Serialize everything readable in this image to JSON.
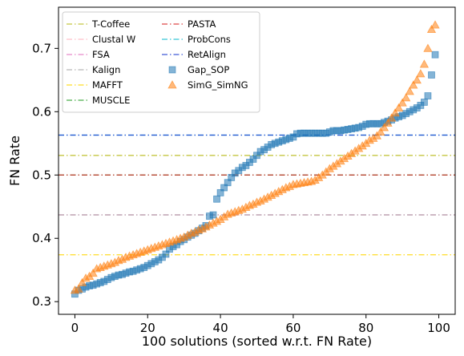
{
  "chart_data": {
    "type": "scatter",
    "xlabel": "100 solutions (sorted w.r.t. FN Rate)",
    "ylabel": "FN Rate",
    "xlim": [
      -4.5,
      104.5
    ],
    "ylim": [
      0.28,
      0.765
    ],
    "xticks": [
      0,
      20,
      40,
      60,
      80,
      100
    ],
    "yticks": [
      0.3,
      0.4,
      0.5,
      0.6,
      0.7
    ],
    "grid": false,
    "legend_position": "top-left",
    "reference_lines": [
      {
        "name": "T-Coffee",
        "value": 0.531,
        "color": "#bcbd22"
      },
      {
        "name": "Clustal W",
        "value": 0.437,
        "color": "#ffb6c1"
      },
      {
        "name": "FSA",
        "value": 0.437,
        "color": "#e377c2"
      },
      {
        "name": "Kalign",
        "value": 0.437,
        "color": "#aaaaaa"
      },
      {
        "name": "MAFFT",
        "value": 0.374,
        "color": "#ffd700"
      },
      {
        "name": "MUSCLE",
        "value": 0.5,
        "color": "#2ca02c"
      },
      {
        "name": "PASTA",
        "value": 0.5,
        "color": "#d62728"
      },
      {
        "name": "ProbCons",
        "value": 0.563,
        "color": "#17becf"
      },
      {
        "name": "RetAlign",
        "value": 0.563,
        "color": "#1f3fd1"
      }
    ],
    "series": [
      {
        "name": "Gap_SOP",
        "marker": "square",
        "color": "#1f77b4",
        "values": [
          0.312,
          0.318,
          0.32,
          0.323,
          0.325,
          0.326,
          0.328,
          0.33,
          0.332,
          0.335,
          0.338,
          0.34,
          0.342,
          0.343,
          0.345,
          0.347,
          0.348,
          0.35,
          0.352,
          0.354,
          0.357,
          0.36,
          0.363,
          0.366,
          0.37,
          0.375,
          0.383,
          0.387,
          0.39,
          0.395,
          0.398,
          0.402,
          0.405,
          0.408,
          0.412,
          0.416,
          0.42,
          0.435,
          0.437,
          0.462,
          0.472,
          0.48,
          0.488,
          0.496,
          0.503,
          0.507,
          0.512,
          0.515,
          0.52,
          0.525,
          0.531,
          0.537,
          0.54,
          0.544,
          0.548,
          0.55,
          0.552,
          0.554,
          0.556,
          0.558,
          0.56,
          0.565,
          0.566,
          0.566,
          0.566,
          0.566,
          0.566,
          0.566,
          0.566,
          0.566,
          0.568,
          0.57,
          0.57,
          0.57,
          0.571,
          0.572,
          0.573,
          0.574,
          0.575,
          0.577,
          0.58,
          0.581,
          0.581,
          0.581,
          0.581,
          0.583,
          0.585,
          0.587,
          0.59,
          0.592,
          0.594,
          0.597,
          0.6,
          0.603,
          0.606,
          0.61,
          0.615,
          0.625,
          0.658,
          0.69
        ]
      },
      {
        "name": "SimG_SimNG",
        "marker": "triangle",
        "color": "#ff7f0e",
        "values": [
          0.318,
          0.32,
          0.33,
          0.337,
          0.34,
          0.345,
          0.352,
          0.354,
          0.356,
          0.358,
          0.36,
          0.362,
          0.365,
          0.367,
          0.37,
          0.372,
          0.374,
          0.376,
          0.378,
          0.38,
          0.382,
          0.384,
          0.386,
          0.388,
          0.39,
          0.392,
          0.394,
          0.396,
          0.398,
          0.4,
          0.402,
          0.405,
          0.408,
          0.41,
          0.413,
          0.415,
          0.418,
          0.421,
          0.424,
          0.427,
          0.43,
          0.434,
          0.438,
          0.44,
          0.442,
          0.444,
          0.446,
          0.449,
          0.452,
          0.454,
          0.457,
          0.459,
          0.462,
          0.465,
          0.468,
          0.471,
          0.474,
          0.477,
          0.48,
          0.482,
          0.485,
          0.486,
          0.487,
          0.488,
          0.489,
          0.49,
          0.492,
          0.496,
          0.5,
          0.505,
          0.51,
          0.514,
          0.518,
          0.522,
          0.526,
          0.53,
          0.534,
          0.538,
          0.542,
          0.546,
          0.55,
          0.555,
          0.558,
          0.562,
          0.568,
          0.575,
          0.582,
          0.59,
          0.598,
          0.606,
          0.614,
          0.622,
          0.632,
          0.642,
          0.65,
          0.66,
          0.675,
          0.7,
          0.73,
          0.737
        ]
      }
    ]
  }
}
